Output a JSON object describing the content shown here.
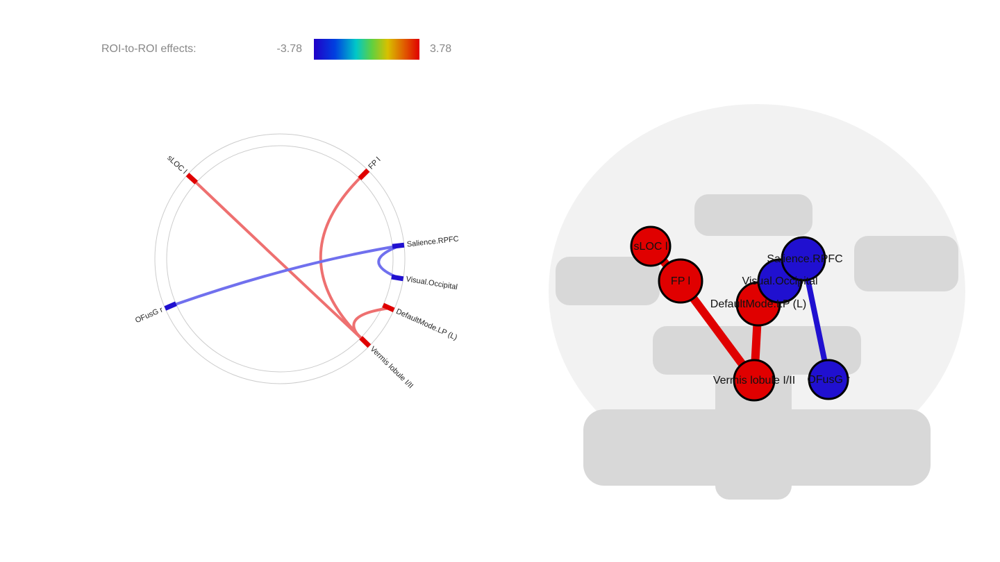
{
  "legend": {
    "label": "ROI-to-ROI effects:",
    "min": -3.78,
    "max": 3.78
  },
  "nodes": [
    {
      "label": "sLOC l"
    },
    {
      "label": "FP l"
    },
    {
      "label": "Salience.RPFC"
    },
    {
      "label": "Visual.Occipital"
    },
    {
      "label": "DefaultMode.LP (L)"
    },
    {
      "label": "Vermis lobule I/II"
    },
    {
      "label": "OFusG r"
    }
  ]
}
